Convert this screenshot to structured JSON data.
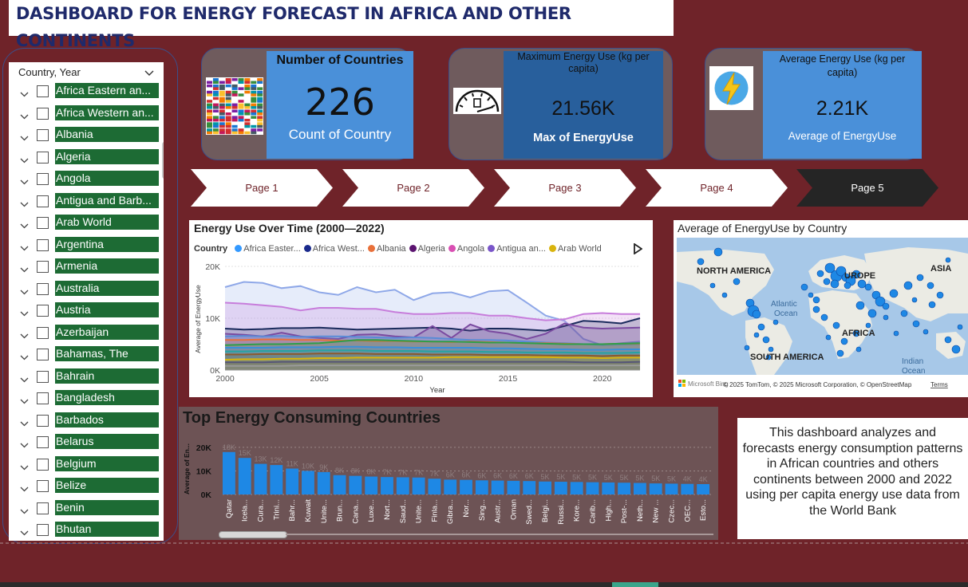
{
  "title": "DASHBOARD FOR ENERGY FORECAST IN AFRICA AND OTHER CONTINENTS",
  "slicer": {
    "header": "Country, Year",
    "items": [
      "Africa Eastern an...",
      "Africa Western an...",
      "Albania",
      "Algeria",
      "Angola",
      "Antigua and Barb...",
      "Arab World",
      "Argentina",
      "Armenia",
      "Australia",
      "Austria",
      "Azerbaijan",
      "Bahamas, The",
      "Bahrain",
      "Bangladesh",
      "Barbados",
      "Belarus",
      "Belgium",
      "Belize",
      "Benin",
      "Bhutan"
    ]
  },
  "kpis": {
    "countries": {
      "title": "Number of Countries",
      "value": "226",
      "label": "Count of Country",
      "icon": "flags-icon"
    },
    "max_energy": {
      "title": "Maximum Energy Use (kg per capita)",
      "value": "21.56K",
      "label": "Max of EnergyUse",
      "icon": "gauge-icon"
    },
    "avg_energy": {
      "title": "Average Energy Use (kg per capita)",
      "value": "2.21K",
      "label": "Average of EnergyUse",
      "icon": "lightning-icon"
    }
  },
  "pages": [
    "Page 1",
    "Page 2",
    "Page 3",
    "Page 4",
    "Page 5"
  ],
  "active_page": "Page 5",
  "colors": {
    "background": "#6f2329",
    "accent_blue": "#4a90d9",
    "slicer_green": "#1d6b34",
    "bar_blue": "#1e88e5"
  },
  "line_chart": {
    "title": "Energy Use Over Time (2000—2022)",
    "legend_title": "Country",
    "legend": [
      {
        "name": "Africa Easter...",
        "color": "#3399ff"
      },
      {
        "name": "Africa West...",
        "color": "#1a2a8c"
      },
      {
        "name": "Albania",
        "color": "#e8703a"
      },
      {
        "name": "Algeria",
        "color": "#5b1470"
      },
      {
        "name": "Angola",
        "color": "#d94fb3"
      },
      {
        "name": "Antigua an...",
        "color": "#7a56c9"
      },
      {
        "name": "Arab World",
        "color": "#d9b40d"
      }
    ],
    "ylabel": "Average of EnergyUse",
    "xlabel": "Year",
    "yticks": [
      "20K",
      "10K",
      "0K"
    ],
    "xticks": [
      "2000",
      "2005",
      "2010",
      "2015",
      "2020"
    ]
  },
  "chart_data": [
    {
      "type": "area",
      "title": "Energy Use Over Time (2000—2022)",
      "xlabel": "Year",
      "ylabel": "Average of EnergyUse",
      "xlim": [
        2000,
        2022
      ],
      "ylim": [
        0,
        20000
      ],
      "x": [
        2000,
        2001,
        2002,
        2003,
        2004,
        2005,
        2006,
        2007,
        2008,
        2009,
        2010,
        2011,
        2012,
        2013,
        2014,
        2015,
        2016,
        2017,
        2018,
        2019,
        2020,
        2021,
        2022
      ],
      "series": [
        {
          "color": "#8fa8e8",
          "values": [
            16000,
            17000,
            16800,
            15800,
            16200,
            15000,
            14500,
            16000,
            15000,
            15500,
            13500,
            14800,
            15000,
            14000,
            15200,
            15400,
            13000,
            10500,
            9500,
            6000,
            4800,
            5200,
            5500
          ]
        },
        {
          "color": "#c77ddb",
          "values": [
            13000,
            12800,
            12500,
            12200,
            11500,
            12000,
            12000,
            11800,
            11800,
            11200,
            10800,
            10800,
            11000,
            11000,
            10500,
            10500,
            10000,
            9600,
            9800,
            10800,
            11000,
            10800,
            10800
          ]
        },
        {
          "color": "#1a2a5c",
          "values": [
            8000,
            7800,
            7900,
            8100,
            8100,
            8200,
            8000,
            7800,
            7900,
            8000,
            8100,
            8200,
            8000,
            7600,
            8000,
            8000,
            7800,
            7600,
            8500,
            9500,
            9300,
            9000,
            10000
          ]
        },
        {
          "color": "#7a4aa0",
          "values": [
            7000,
            6800,
            6500,
            7200,
            6500,
            6200,
            6000,
            6800,
            6900,
            6500,
            6300,
            8500,
            6200,
            8800,
            7500,
            7000,
            6000,
            7000,
            9000,
            8200,
            8000,
            8100,
            8200
          ]
        },
        {
          "color": "#5a8bd6",
          "values": [
            6500,
            6600,
            6500,
            6600,
            6400,
            6500,
            6500,
            6400,
            6300,
            6200,
            6300,
            6200,
            6000,
            5800,
            5800,
            5700,
            5500,
            5300,
            5200,
            5000,
            4800,
            4900,
            5000
          ]
        },
        {
          "color": "#e8703a",
          "values": [
            5800,
            5800,
            5900,
            5900,
            5800,
            5800,
            5700,
            5700,
            5600,
            5600,
            5500,
            5500,
            5400,
            5500,
            5400,
            5300,
            5200,
            5200,
            5100,
            5000,
            5000,
            5100,
            5100
          ]
        },
        {
          "color": "#2e9e4a",
          "values": [
            4800,
            4900,
            5000,
            5000,
            5100,
            5200,
            5500,
            5800,
            5800,
            5700,
            5600,
            5500,
            5500,
            5400,
            5300,
            5300,
            5200,
            5100,
            5000,
            5000,
            5000,
            5100,
            5200
          ]
        },
        {
          "color": "#3a8fd9",
          "values": [
            4300,
            4300,
            4300,
            4400,
            4400,
            4400,
            4500,
            4500,
            4400,
            4400,
            4300,
            4300,
            4300,
            4300,
            4200,
            4200,
            4100,
            4000,
            4000,
            3900,
            3900,
            4000,
            4000
          ]
        },
        {
          "color": "#27a2a2",
          "values": [
            3600,
            3600,
            3700,
            3700,
            3700,
            3800,
            3800,
            3800,
            3700,
            3700,
            3700,
            3600,
            3600,
            3600,
            3500,
            3500,
            3400,
            3400,
            3400,
            3300,
            3300,
            3300,
            3400
          ]
        },
        {
          "color": "#8c5a2e",
          "values": [
            3000,
            3000,
            3100,
            3100,
            3100,
            3200,
            3200,
            3200,
            3100,
            3100,
            3100,
            3000,
            3000,
            3000,
            2900,
            2900,
            2900,
            2800,
            2800,
            2800,
            2700,
            2800,
            2800
          ]
        },
        {
          "color": "#d9b40d",
          "values": [
            2000,
            2100,
            2100,
            2200,
            2200,
            2300,
            2300,
            2400,
            2400,
            2400,
            2400,
            2400,
            2500,
            2500,
            2500,
            2500,
            2500,
            2500,
            2400,
            2400,
            2300,
            2400,
            2400
          ]
        },
        {
          "color": "#555577",
          "values": [
            1500,
            1500,
            1500,
            1600,
            1600,
            1600,
            1600,
            1600,
            1600,
            1600,
            1600,
            1600,
            1600,
            1600,
            1600,
            1600,
            1600,
            1600,
            1600,
            1500,
            1500,
            1500,
            1600
          ]
        },
        {
          "color": "#9a9a9a",
          "values": [
            800,
            800,
            800,
            800,
            900,
            900,
            900,
            900,
            900,
            900,
            900,
            900,
            900,
            900,
            900,
            900,
            900,
            900,
            900,
            900,
            900,
            900,
            900
          ]
        }
      ]
    },
    {
      "type": "bar",
      "title": "Top Energy Consuming Countries",
      "ylabel": "Average of En...",
      "ylim": [
        0,
        22000
      ],
      "yticks": [
        "20K",
        "10K",
        "0K"
      ],
      "categories": [
        "Qatar",
        "Icela...",
        "Cura...",
        "Trini...",
        "Bahr...",
        "Kuwait",
        "Unite...",
        "Brun...",
        "Cana...",
        "Luxe...",
        "Nort...",
        "Saud...",
        "Unite...",
        "Finla...",
        "Gibra...",
        "Nor...",
        "Sing...",
        "Austr...",
        "Oman",
        "Swed...",
        "Belgi...",
        "Russi...",
        "Kore...",
        "Carib...",
        "High...",
        "Post-...",
        "Neth...",
        "New ...",
        "Czec...",
        "OEC...",
        "Esto..."
      ],
      "values": [
        18000,
        15500,
        13000,
        12500,
        11000,
        10000,
        9500,
        8200,
        7900,
        7600,
        7400,
        7300,
        7200,
        6700,
        6300,
        6200,
        6000,
        5900,
        5800,
        5700,
        5500,
        5400,
        5300,
        5200,
        5100,
        5000,
        4900,
        4700,
        4600,
        4500,
        4400
      ],
      "labels": [
        "18K",
        "15K",
        "13K",
        "12K",
        "11K",
        "10K",
        "9K",
        "8K",
        "8K",
        "8K",
        "7K",
        "7K",
        "7K",
        "7K",
        "6K",
        "6K",
        "6K",
        "6K",
        "6K",
        "6K",
        "5K",
        "5K",
        "5K",
        "5K",
        "5K",
        "5K",
        "5K",
        "5K",
        "5K",
        "4K",
        "4K"
      ]
    }
  ],
  "map": {
    "title": "Average of EnergyUse by Country",
    "labels": {
      "north_america": "NORTH AMERICA",
      "europe": "UROPE",
      "asia": "ASIA",
      "africa": "AFRICA",
      "south_america": "SOUTH AMERICA",
      "atlantic": "Atlantic",
      "ocean1": "Ocean",
      "indian": "Indian",
      "ocean2": "Ocean"
    },
    "attribution": "© 2025 TomTom, © 2025 Microsoft Corporation, © OpenStreetMap",
    "terms": "Terms",
    "logo": "Microsoft Bing"
  },
  "description": "This dashboard analyzes and forecasts energy consumption patterns in African countries and others continents between 2000 and 2022 using per capita energy use data from the World Bank"
}
